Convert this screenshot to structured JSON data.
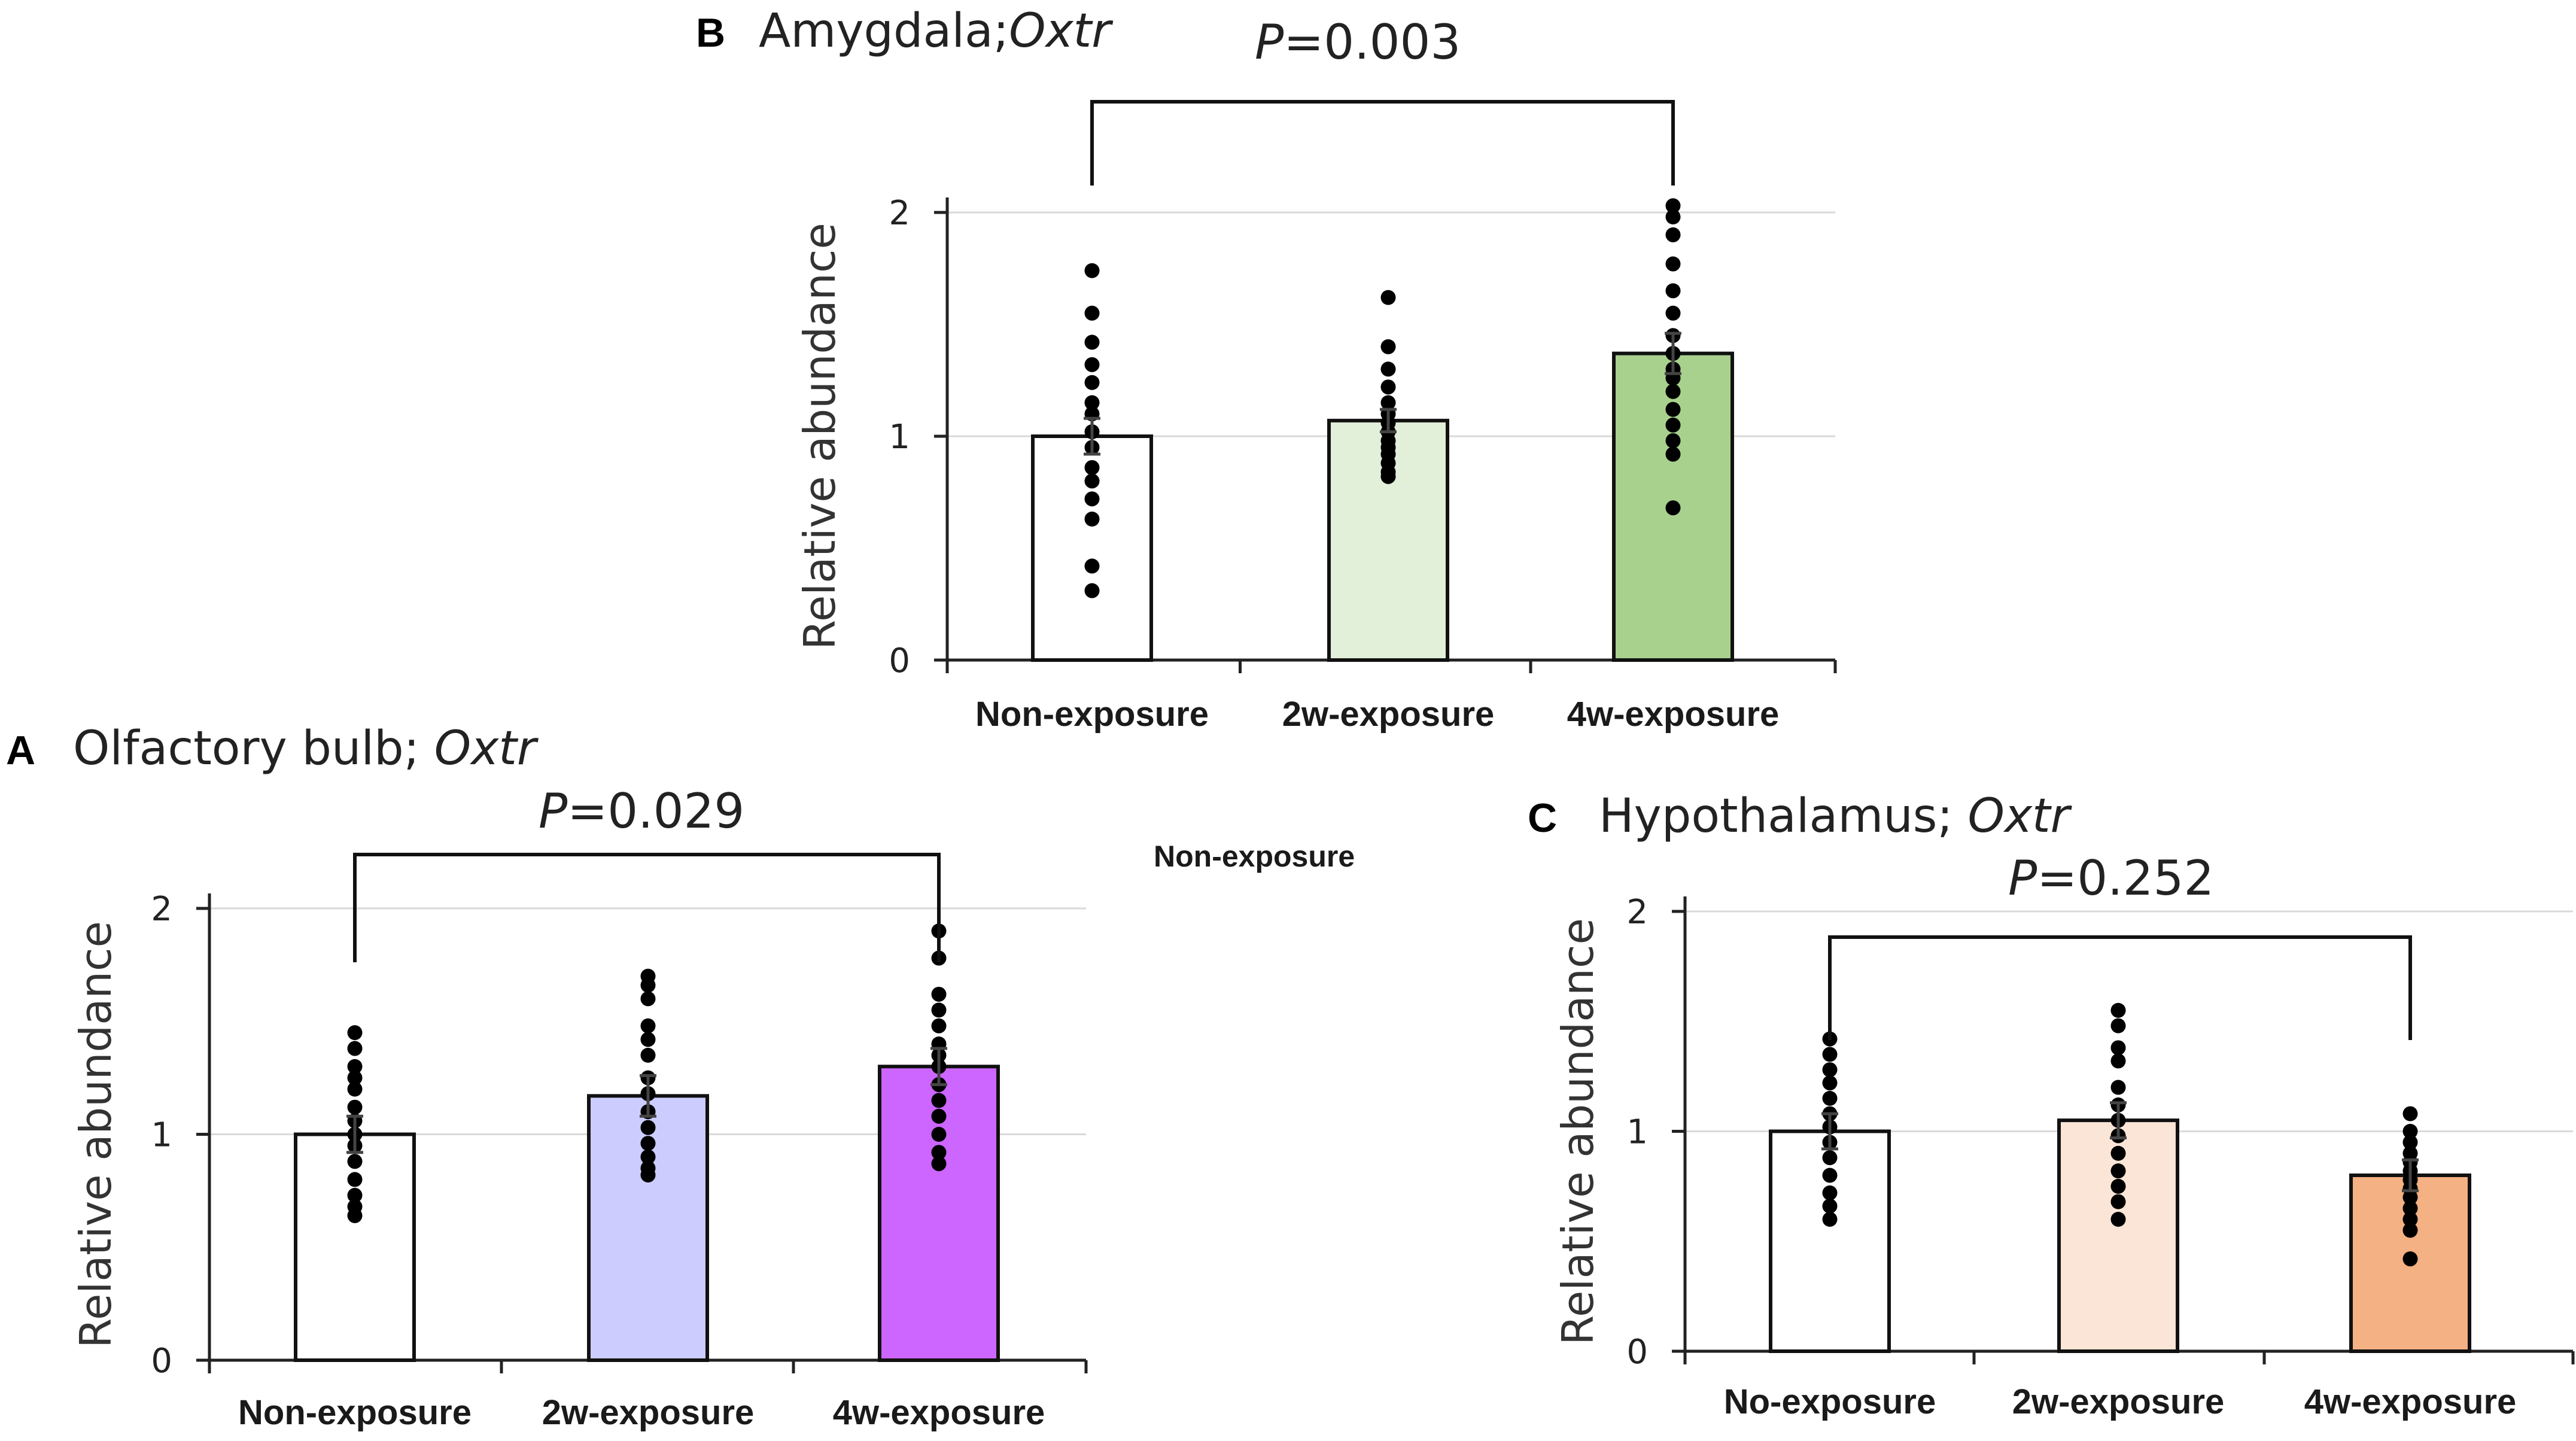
{
  "stray_label": "Non-exposure",
  "chart_data": [
    {
      "type": "bar",
      "panel": "B",
      "region": "Amygdala",
      "separator": ";",
      "gene": "Oxtr",
      "title": "Amygdala;Oxtr",
      "p_prefix": "P",
      "p_value": "=0.003",
      "ylabel": "Relative abundance",
      "ylim": [
        0,
        2
      ],
      "yticks": [
        "0",
        "1",
        "2"
      ],
      "grid": true,
      "categories": [
        "Non-exposure",
        "2w-exposure",
        "4w-exposure"
      ],
      "values": [
        1.0,
        1.07,
        1.37
      ],
      "errors": [
        0.08,
        0.05,
        0.09
      ],
      "colors": [
        "#ffffff",
        "#e2efd9",
        "#a9d18e"
      ],
      "points": [
        [
          1.74,
          1.55,
          1.42,
          1.32,
          1.24,
          1.15,
          1.1,
          1.02,
          0.95,
          0.86,
          0.8,
          0.72,
          0.63,
          0.42,
          0.31
        ],
        [
          1.62,
          1.4,
          1.3,
          1.22,
          1.15,
          1.1,
          1.06,
          1.02,
          0.98,
          0.95,
          0.92,
          0.88,
          0.84,
          0.82
        ],
        [
          2.03,
          1.98,
          1.9,
          1.77,
          1.65,
          1.55,
          1.45,
          1.37,
          1.3,
          1.26,
          1.2,
          1.12,
          1.05,
          0.98,
          0.92,
          0.68
        ]
      ],
      "comparison": [
        0,
        2
      ]
    },
    {
      "type": "bar",
      "panel": "A",
      "region": "Olfactory bulb",
      "separator": "; ",
      "gene": "Oxtr",
      "title": "Olfactory bulb; Oxtr",
      "p_prefix": "P",
      "p_value": "=0.029",
      "ylabel": "Relative abundance",
      "ylim": [
        0,
        2
      ],
      "yticks": [
        "0",
        "1",
        "2"
      ],
      "grid": true,
      "categories": [
        "Non-exposure",
        "2w-exposure",
        "4w-exposure"
      ],
      "values": [
        1.0,
        1.17,
        1.3
      ],
      "errors": [
        0.08,
        0.09,
        0.08
      ],
      "colors": [
        "#ffffff",
        "#ccccff",
        "#cc66ff"
      ],
      "points": [
        [
          1.45,
          1.38,
          1.3,
          1.25,
          1.2,
          1.12,
          1.06,
          1.0,
          0.95,
          0.88,
          0.8,
          0.73,
          0.68,
          0.64
        ],
        [
          1.7,
          1.66,
          1.6,
          1.48,
          1.42,
          1.35,
          1.25,
          1.18,
          1.1,
          1.03,
          0.96,
          0.9,
          0.85,
          0.82
        ],
        [
          1.9,
          1.78,
          1.62,
          1.55,
          1.48,
          1.4,
          1.35,
          1.3,
          1.22,
          1.15,
          1.08,
          1.0,
          0.92,
          0.87
        ]
      ],
      "comparison": [
        0,
        2
      ]
    },
    {
      "type": "bar",
      "panel": "C",
      "region": "Hypothalamus",
      "separator": "; ",
      "gene": "Oxtr",
      "title": "Hypothalamus; Oxtr",
      "p_prefix": "P",
      "p_value": "=0.252",
      "ylabel": "Relative abundance",
      "ylim": [
        0,
        2
      ],
      "yticks": [
        "0",
        "1",
        "2"
      ],
      "grid": true,
      "categories": [
        "No-exposure",
        "2w-exposure",
        "4w-exposure"
      ],
      "values": [
        1.0,
        1.05,
        0.8
      ],
      "errors": [
        0.08,
        0.08,
        0.07
      ],
      "colors": [
        "#ffffff",
        "#fbe5d6",
        "#f4b183"
      ],
      "points": [
        [
          1.42,
          1.35,
          1.28,
          1.22,
          1.15,
          1.08,
          1.02,
          0.95,
          0.88,
          0.8,
          0.72,
          0.66,
          0.6
        ],
        [
          1.55,
          1.48,
          1.38,
          1.32,
          1.2,
          1.12,
          1.05,
          0.98,
          0.9,
          0.82,
          0.75,
          0.68,
          0.6
        ],
        [
          1.08,
          1.0,
          0.95,
          0.9,
          0.86,
          0.82,
          0.78,
          0.74,
          0.7,
          0.65,
          0.6,
          0.55,
          0.42
        ]
      ],
      "comparison": [
        0,
        2
      ]
    }
  ]
}
